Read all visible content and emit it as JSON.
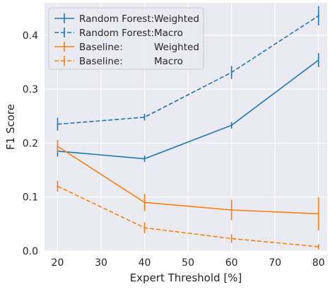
{
  "chart_data": {
    "type": "line",
    "title": "",
    "xlabel": "Expert Threshold [%]",
    "ylabel": "F1 Score",
    "x": [
      20,
      40,
      60,
      80
    ],
    "xticks": [
      20,
      30,
      40,
      50,
      60,
      70,
      80
    ],
    "yticks": [
      0.0,
      0.1,
      0.2,
      0.3,
      0.4
    ],
    "ytick_labels": [
      "0.0",
      "0.1",
      "0.2",
      "0.3",
      "0.4"
    ],
    "xlim": [
      17,
      82
    ],
    "ylim": [
      0.0,
      0.46
    ],
    "grid": true,
    "background": "#eaeaf2",
    "legend_position": "top-left",
    "series": [
      {
        "name": "Random Forest: Weighted",
        "legend_left": "Random Forest:",
        "legend_right": "Weighted",
        "color": "#1f77b4",
        "dashed": false,
        "values": [
          0.185,
          0.171,
          0.233,
          0.354
        ],
        "errors": [
          0.01,
          0.006,
          0.006,
          0.013
        ]
      },
      {
        "name": "Random Forest: Macro",
        "legend_left": "Random Forest:",
        "legend_right": "Macro",
        "color": "#1f77b4",
        "dashed": true,
        "values": [
          0.235,
          0.248,
          0.331,
          0.436
        ],
        "errors": [
          0.012,
          0.006,
          0.012,
          0.018
        ]
      },
      {
        "name": "Baseline: Weighted",
        "legend_left": "Baseline:",
        "legend_right": "Weighted",
        "color": "#ff7f0e",
        "dashed": false,
        "values": [
          0.194,
          0.09,
          0.076,
          0.069
        ],
        "errors": [
          0.012,
          0.016,
          0.019,
          0.031
        ]
      },
      {
        "name": "Baseline: Macro",
        "legend_left": "Baseline:",
        "legend_right": "Macro",
        "color": "#ff7f0e",
        "dashed": true,
        "values": [
          0.12,
          0.043,
          0.023,
          0.008
        ],
        "errors": [
          0.01,
          0.01,
          0.008,
          0.005
        ]
      }
    ]
  }
}
